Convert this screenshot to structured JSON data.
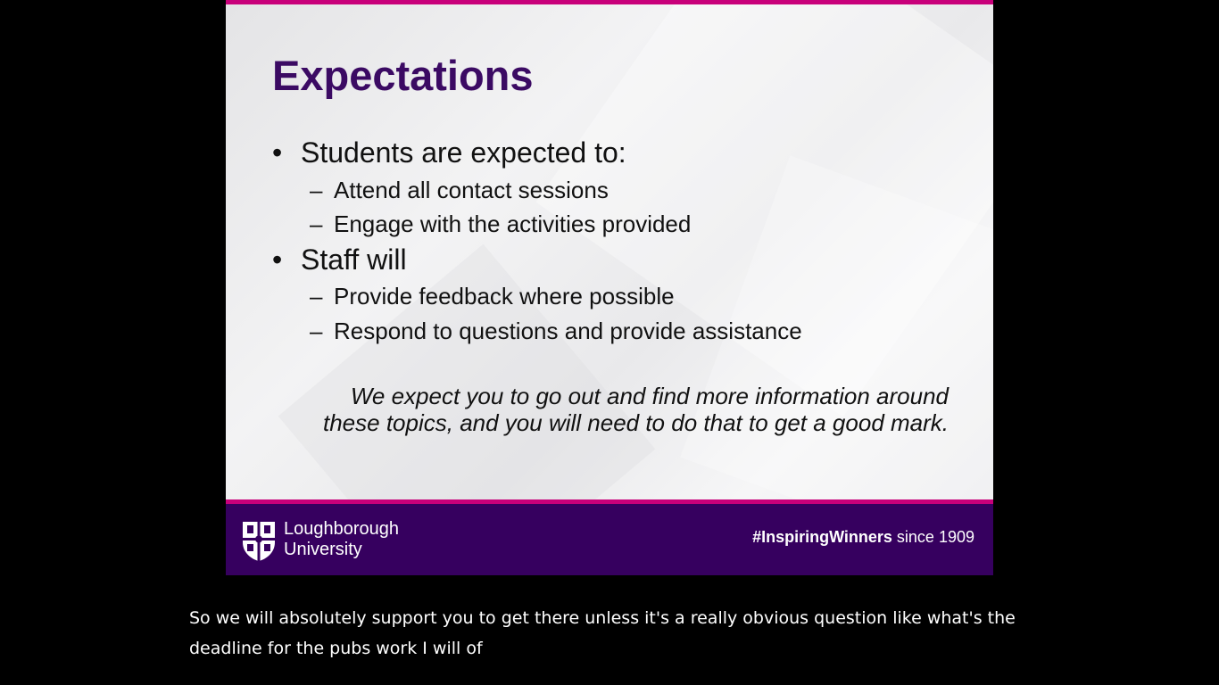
{
  "slide": {
    "title": "Expectations",
    "bullets": [
      {
        "text": "Students are expected to:",
        "sub": [
          "Attend all contact sessions",
          "Engage with the activities provided"
        ]
      },
      {
        "text": "Staff will",
        "sub": [
          "Provide feedback where possible",
          "Respond to questions and provide assistance"
        ]
      }
    ],
    "note": "We expect you to go out and find more information around these topics, and you will need to do that to get a good mark.",
    "bullet_glyph": "•",
    "dash_glyph": "–"
  },
  "footer": {
    "logo_line1": "Loughborough",
    "logo_line2": "University",
    "tagline_bold": "#InspiringWinners",
    "tagline_rest": " since 1909"
  },
  "caption": {
    "text": "So we will absolutely support you to get there unless it's a really obvious question like what's the deadline for the pubs work I will of"
  },
  "colors": {
    "title": "#3b0a63",
    "accent_bar": "#c8007a",
    "footer_bg": "#36005f",
    "background": "#000000"
  }
}
